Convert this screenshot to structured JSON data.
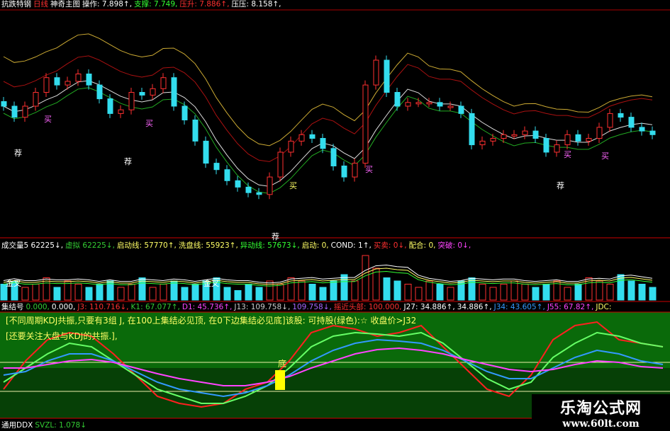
{
  "panel_main": {
    "header": [
      {
        "text": "抗跌特钢",
        "color": "#ffffff"
      },
      {
        "text": "日线",
        "color": "#ff3030"
      },
      {
        "text": "神奇主图",
        "color": "#ffffff"
      },
      {
        "text": "操作: 7.898↑,",
        "color": "#ffffff"
      },
      {
        "text": "支撑: 7.749,",
        "color": "#33ff33"
      },
      {
        "text": "压升: 7.886↑,",
        "color": "#ff3030"
      },
      {
        "text": "压压: 8.158↑,",
        "color": "#ffffff"
      }
    ],
    "labels": [
      {
        "text": "荐",
        "color": "#ffffff"
      },
      {
        "text": "买",
        "color": "#ff66ff"
      },
      {
        "text": "买",
        "color": "#ff66ff"
      },
      {
        "text": "荐",
        "color": "#ffffff"
      },
      {
        "text": "买",
        "color": "#ffff66"
      },
      {
        "text": "买",
        "color": "#ff66ff"
      },
      {
        "text": "荐",
        "color": "#ffffff"
      },
      {
        "text": "买",
        "color": "#ff66ff"
      },
      {
        "text": "买",
        "color": "#ff66ff"
      },
      {
        "text": "荐",
        "color": "#ffffff"
      }
    ]
  },
  "panel_volume": {
    "header": [
      {
        "text": "成交量5  62225↓,",
        "color": "#ffffff"
      },
      {
        "text": "虚拟  62225↓,",
        "color": "#33cc33"
      },
      {
        "text": "启动线: 57770↑,",
        "color": "#ffff66"
      },
      {
        "text": "洗盘线: 55923↑,",
        "color": "#ffff66"
      },
      {
        "text": "异动线: 57673↓,",
        "color": "#33ff33"
      },
      {
        "text": "启动: 0,",
        "color": "#ffff66"
      },
      {
        "text": "COND: 1↑,",
        "color": "#ffffff"
      },
      {
        "text": "买卖: 0↓,",
        "color": "#ff3030"
      },
      {
        "text": "配合: 0,",
        "color": "#ffff66"
      },
      {
        "text": "突破: 0↓,",
        "color": "#ff44ff"
      }
    ],
    "labels": [
      {
        "text": "金叉",
        "color": "#ffffff"
      },
      {
        "text": "金叉",
        "color": "#ffffff"
      }
    ]
  },
  "panel_kdj": {
    "header": [
      {
        "text": "集结号",
        "color": "#ffffff"
      },
      {
        "text": "0.000,",
        "color": "#33cc33"
      },
      {
        "text": "0.000,",
        "color": "#ffffff"
      },
      {
        "text": "J3: 110.716↓,",
        "color": "#ff3030"
      },
      {
        "text": "K1: 67.077↑,",
        "color": "#33cc33"
      },
      {
        "text": "D1: 45.736↑,",
        "color": "#ff44ff"
      },
      {
        "text": "J13: 109.758↓,",
        "color": "#cccccc"
      },
      {
        "text": "109.758↓,",
        "color": "#aa66ff"
      },
      {
        "text": "摇近头部: 100.000,",
        "color": "#ff3030"
      },
      {
        "text": "J27: 34.886↑,",
        "color": "#ffffff"
      },
      {
        "text": "34.886↑,",
        "color": "#ffffff"
      },
      {
        "text": "J34: 43.605↑,",
        "color": "#3399ff"
      },
      {
        "text": "J55: 67.82↑,",
        "color": "#ff44ff"
      },
      {
        "text": "JDC:",
        "color": "#ffff66"
      }
    ],
    "note1": "[不同周期KDJ共振,只要有3组 J, 在100上集结必见顶, 在0下边集结必见底]该股: 可持股(绿色):☆ 收盘价>J32",
    "note2": "[还要关注大盘与KDJ的共振.],",
    "label_bottom": "底"
  },
  "panel_ddx": {
    "header": [
      {
        "text": "通用DDX",
        "color": "#ffffff"
      },
      {
        "text": "SVZL: 1.078↓",
        "color": "#33cc33"
      }
    ]
  },
  "watermark": {
    "title": "乐淘公式网",
    "url": "www.60lt.com"
  },
  "chart_data": {
    "type": "candlestick",
    "closes": [
      7.0,
      6.88,
      7.0,
      7.15,
      7.31,
      7.23,
      7.27,
      7.35,
      7.23,
      7.08,
      6.92,
      6.96,
      7.15,
      7.12,
      7.19,
      7.31,
      7.0,
      6.85,
      6.62,
      6.38,
      6.31,
      6.19,
      6.12,
      6.06,
      6.04,
      6.23,
      6.5,
      6.62,
      6.69,
      6.65,
      6.54,
      6.35,
      6.23,
      6.38,
      7.23,
      7.5,
      7.15,
      7.0,
      7.04,
      7.04,
      7.04,
      7.0,
      7.0,
      6.92,
      6.58,
      6.62,
      6.65,
      6.69,
      6.69,
      6.73,
      6.65,
      6.5,
      6.58,
      6.69,
      6.62,
      6.65,
      6.77,
      6.92,
      6.88,
      6.77,
      6.73,
      6.69
    ],
    "volume": [
      5,
      6,
      4,
      5,
      7,
      4,
      6,
      5,
      4,
      5,
      6,
      4,
      5,
      7,
      4,
      5,
      6,
      4,
      5,
      6,
      7,
      4,
      3,
      5,
      4,
      6,
      5,
      7,
      6,
      5,
      4,
      6,
      8,
      6,
      14,
      10,
      7,
      6,
      5,
      4,
      6,
      5,
      4,
      6,
      7,
      5,
      4,
      5,
      6,
      5,
      4,
      5,
      6,
      4,
      5,
      7,
      6,
      5,
      8,
      6,
      5,
      4
    ],
    "oscillator": {
      "ylim": [
        -20,
        120
      ],
      "series": [
        {
          "color": "#ff2020",
          "values": [
            20,
            60,
            90,
            100,
            95,
            70,
            40,
            10,
            0,
            -5,
            0,
            20,
            30,
            60,
            100,
            110,
            105,
            95,
            100,
            110,
            80,
            50,
            20,
            10,
            40,
            90,
            110,
            115,
            90,
            85,
            80
          ]
        },
        {
          "color": "#66ff66",
          "values": [
            30,
            50,
            70,
            85,
            80,
            60,
            40,
            20,
            10,
            0,
            0,
            10,
            25,
            50,
            80,
            95,
            100,
            98,
            95,
            100,
            85,
            60,
            35,
            20,
            30,
            65,
            85,
            100,
            95,
            85,
            80
          ]
        },
        {
          "color": "#3399ff",
          "values": [
            40,
            45,
            60,
            70,
            70,
            60,
            45,
            30,
            20,
            15,
            10,
            15,
            25,
            40,
            60,
            75,
            85,
            90,
            88,
            85,
            75,
            60,
            45,
            35,
            35,
            50,
            65,
            75,
            70,
            60,
            55
          ]
        },
        {
          "color": "#ff44ff",
          "values": [
            50,
            50,
            55,
            60,
            62,
            58,
            50,
            42,
            35,
            30,
            25,
            25,
            30,
            38,
            50,
            60,
            70,
            76,
            78,
            75,
            70,
            62,
            55,
            48,
            45,
            48,
            55,
            60,
            58,
            52,
            50
          ]
        }
      ]
    }
  }
}
